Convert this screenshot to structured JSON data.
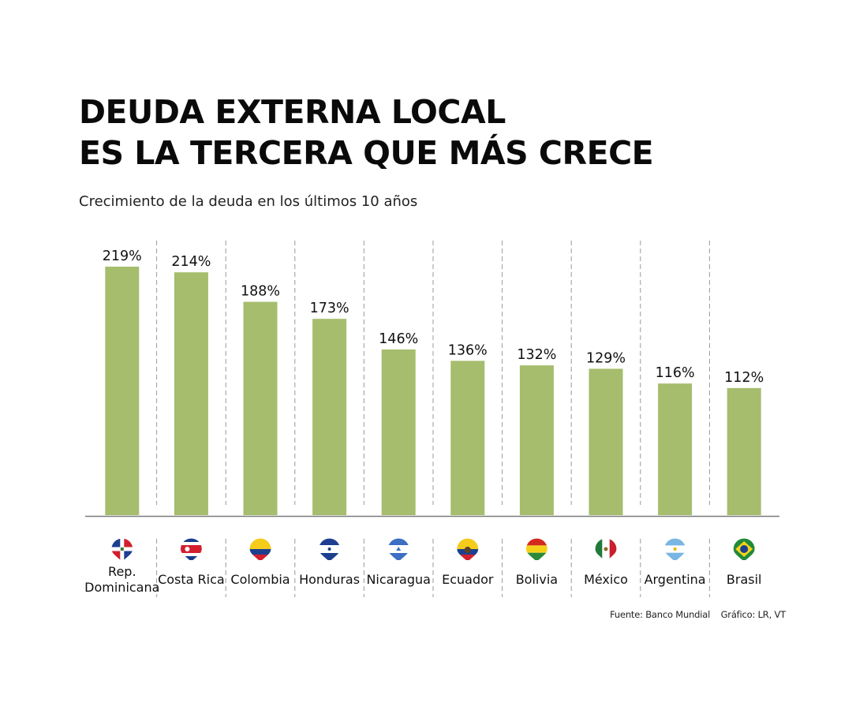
{
  "title_lines": [
    "DEUDA EXTERNA LOCAL",
    "ES LA TERCERA QUE MÁS CRECE"
  ],
  "subtitle": "Crecimiento de la deuda en los últimos 10 años",
  "source": {
    "fuente": "Fuente: Banco Mundial",
    "grafico": "Gráfico: LR, VT"
  },
  "chart_data": {
    "type": "bar",
    "categories": [
      "Rep. Dominicana",
      "Costa Rica",
      "Colombia",
      "Honduras",
      "Nicaragua",
      "Ecuador",
      "Bolivia",
      "México",
      "Argentina",
      "Brasil"
    ],
    "values": [
      219,
      214,
      188,
      173,
      146,
      136,
      132,
      129,
      116,
      112
    ],
    "data_labels": [
      "219%",
      "214%",
      "188%",
      "173%",
      "146%",
      "136%",
      "132%",
      "129%",
      "116%",
      "112%"
    ],
    "title": "DEUDA EXTERNA LOCAL ES LA TERCERA QUE MÁS CRECE",
    "subtitle": "Crecimiento de la deuda en los últimos 10 años",
    "xlabel": "",
    "ylabel": "",
    "ylim": [
      0,
      219
    ],
    "bar_color": "#a5bd6d",
    "grid": "vertical dashed separators",
    "icons": [
      "flag-dominican-republic-icon",
      "flag-costa-rica-icon",
      "flag-colombia-icon",
      "flag-honduras-icon",
      "flag-nicaragua-icon",
      "flag-ecuador-icon",
      "flag-bolivia-icon",
      "flag-mexico-icon",
      "flag-argentina-icon",
      "flag-brazil-icon"
    ]
  }
}
